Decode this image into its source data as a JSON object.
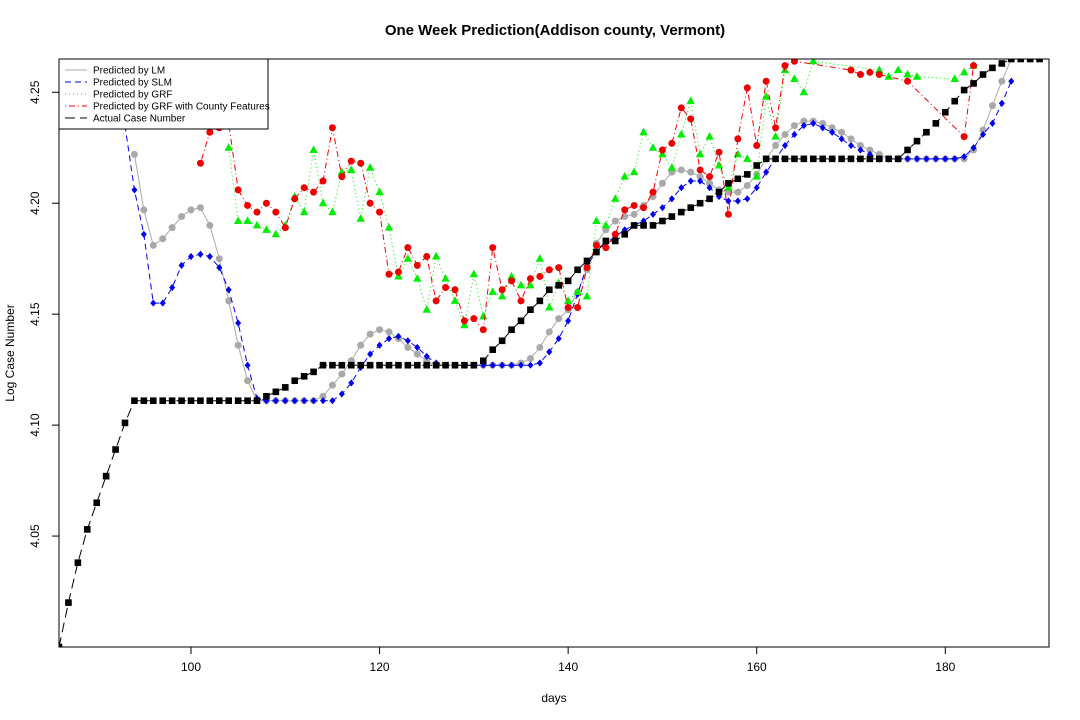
{
  "chart_data": {
    "type": "line",
    "title": "One Week Prediction(Addison county, Vermont)",
    "xlabel": "days",
    "ylabel": "Log Case Number",
    "xlim": [
      86,
      191
    ],
    "ylim": [
      4.0,
      4.265
    ],
    "x_ticks": [
      100,
      120,
      140,
      160,
      180
    ],
    "y_ticks": [
      4.05,
      4.1,
      4.15,
      4.2,
      4.25
    ],
    "x_tick_labels": [
      "100",
      "120",
      "140",
      "160",
      "180"
    ],
    "y_tick_labels": [
      "4.05",
      "4.10",
      "4.15",
      "4.20",
      "4.25"
    ],
    "grid": false,
    "legend_position": "top-left",
    "series": [
      {
        "name": "Predicted by LM",
        "color": "#a9a9a9",
        "line_style": "solid",
        "marker": "circle",
        "x": [
          94,
          95,
          96,
          97,
          98,
          99,
          100,
          101,
          102,
          103,
          104,
          105,
          106,
          107,
          108,
          109,
          110,
          111,
          112,
          113,
          114,
          115,
          116,
          117,
          118,
          119,
          120,
          121,
          122,
          123,
          124,
          125,
          126,
          127,
          128,
          129,
          130,
          131,
          132,
          133,
          134,
          135,
          136,
          137,
          138,
          139,
          140,
          141,
          142,
          143,
          144,
          145,
          146,
          147,
          148,
          149,
          150,
          151,
          152,
          153,
          154,
          155,
          156,
          157,
          158,
          159,
          160,
          161,
          162,
          163,
          164,
          165,
          166,
          167,
          168,
          169,
          170,
          171,
          172,
          173,
          174,
          175,
          176,
          177,
          178,
          179,
          180,
          181,
          182,
          183,
          184,
          185,
          186,
          187
        ],
        "y": [
          4.222,
          4.197,
          4.181,
          4.184,
          4.189,
          4.194,
          4.197,
          4.198,
          4.19,
          4.175,
          4.156,
          4.136,
          4.12,
          4.111,
          4.111,
          4.111,
          4.111,
          4.111,
          4.111,
          4.111,
          4.113,
          4.118,
          4.123,
          4.129,
          4.136,
          4.141,
          4.143,
          4.142,
          4.139,
          4.135,
          4.132,
          4.129,
          4.127,
          4.127,
          4.127,
          4.127,
          4.127,
          4.127,
          4.127,
          4.127,
          4.127,
          4.128,
          4.13,
          4.135,
          4.142,
          4.148,
          4.152,
          4.16,
          4.17,
          4.182,
          4.188,
          4.192,
          4.194,
          4.195,
          4.199,
          4.203,
          4.209,
          4.214,
          4.215,
          4.214,
          4.212,
          4.209,
          4.206,
          4.205,
          4.205,
          4.208,
          4.213,
          4.22,
          4.226,
          4.231,
          4.235,
          4.237,
          4.237,
          4.236,
          4.234,
          4.232,
          4.229,
          4.226,
          4.224,
          4.222,
          4.22,
          4.22,
          4.22,
          4.22,
          4.22,
          4.22,
          4.22,
          4.22,
          4.22,
          4.224,
          4.233,
          4.244,
          4.255,
          4.265
        ]
      },
      {
        "name": "Predicted by SLM",
        "color": "#0000ee",
        "line_style": "dashed",
        "marker": "diamond",
        "x": [
          93,
          94,
          95,
          96,
          97,
          98,
          99,
          100,
          101,
          102,
          103,
          104,
          105,
          106,
          107,
          108,
          109,
          110,
          111,
          112,
          113,
          114,
          115,
          116,
          117,
          118,
          119,
          120,
          121,
          122,
          123,
          124,
          125,
          126,
          127,
          128,
          129,
          130,
          131,
          132,
          133,
          134,
          135,
          136,
          137,
          138,
          139,
          140,
          141,
          142,
          143,
          144,
          145,
          146,
          147,
          148,
          149,
          150,
          151,
          152,
          153,
          154,
          155,
          156,
          157,
          158,
          159,
          160,
          161,
          162,
          163,
          164,
          165,
          166,
          167,
          168,
          169,
          170,
          171,
          172,
          173,
          174,
          175,
          176,
          177,
          178,
          179,
          180,
          181,
          182,
          183,
          184,
          185,
          186,
          187
        ],
        "y": [
          4.235,
          4.206,
          4.186,
          4.155,
          4.155,
          4.162,
          4.172,
          4.176,
          4.177,
          4.176,
          4.171,
          4.161,
          4.146,
          4.127,
          4.112,
          4.111,
          4.111,
          4.111,
          4.111,
          4.111,
          4.111,
          4.111,
          4.111,
          4.114,
          4.119,
          4.126,
          4.132,
          4.136,
          4.139,
          4.14,
          4.138,
          4.135,
          4.131,
          4.128,
          4.127,
          4.127,
          4.127,
          4.127,
          4.127,
          4.127,
          4.127,
          4.127,
          4.127,
          4.127,
          4.128,
          4.133,
          4.139,
          4.147,
          4.159,
          4.172,
          4.178,
          4.182,
          4.185,
          4.188,
          4.19,
          4.192,
          4.195,
          4.198,
          4.202,
          4.207,
          4.21,
          4.21,
          4.207,
          4.203,
          4.201,
          4.201,
          4.202,
          4.207,
          4.214,
          4.22,
          4.226,
          4.231,
          4.235,
          4.236,
          4.234,
          4.232,
          4.229,
          4.226,
          4.224,
          4.222,
          4.22,
          4.22,
          4.22,
          4.22,
          4.22,
          4.22,
          4.22,
          4.22,
          4.22,
          4.221,
          4.225,
          4.231,
          4.236,
          4.245,
          4.255
        ]
      },
      {
        "name": "Predicted by GRF",
        "color": "#00ee00",
        "line_style": "dotted",
        "marker": "triangle",
        "x": [
          104,
          105,
          106,
          107,
          108,
          109,
          110,
          111,
          112,
          113,
          114,
          115,
          116,
          117,
          118,
          119,
          120,
          121,
          122,
          123,
          124,
          125,
          126,
          127,
          128,
          129,
          130,
          131,
          132,
          133,
          134,
          135,
          136,
          137,
          138,
          139,
          140,
          141,
          142,
          143,
          144,
          145,
          146,
          147,
          148,
          149,
          150,
          151,
          152,
          153,
          154,
          155,
          156,
          157,
          158,
          159,
          160,
          161,
          162,
          163,
          164,
          165,
          166,
          173,
          174,
          175,
          176,
          177,
          181,
          182,
          183
        ],
        "y": [
          4.225,
          4.192,
          4.192,
          4.19,
          4.188,
          4.186,
          4.19,
          4.203,
          4.196,
          4.224,
          4.2,
          4.196,
          4.214,
          4.215,
          4.193,
          4.216,
          4.205,
          4.189,
          4.167,
          4.175,
          4.166,
          4.152,
          4.176,
          4.166,
          4.156,
          4.145,
          4.168,
          4.149,
          4.16,
          4.158,
          4.167,
          4.163,
          4.163,
          4.175,
          4.153,
          4.164,
          4.156,
          4.16,
          4.158,
          4.192,
          4.19,
          4.202,
          4.212,
          4.214,
          4.232,
          4.225,
          4.222,
          4.216,
          4.231,
          4.246,
          4.222,
          4.23,
          4.217,
          4.207,
          4.222,
          4.22,
          4.212,
          4.248,
          4.23,
          4.26,
          4.256,
          4.25,
          4.264,
          4.26,
          4.257,
          4.26,
          4.258,
          4.257,
          4.256,
          4.259,
          4.262
        ]
      },
      {
        "name": "Predicted by GRF with County Features",
        "color": "#ee0000",
        "line_style": "dotdash",
        "marker": "circle",
        "x": [
          101,
          102,
          103,
          104,
          105,
          106,
          107,
          108,
          109,
          110,
          111,
          112,
          113,
          114,
          115,
          116,
          117,
          118,
          119,
          120,
          121,
          122,
          123,
          124,
          125,
          126,
          127,
          128,
          129,
          130,
          131,
          132,
          133,
          134,
          135,
          136,
          137,
          138,
          139,
          140,
          141,
          142,
          143,
          144,
          145,
          146,
          147,
          148,
          149,
          150,
          151,
          152,
          153,
          154,
          155,
          156,
          157,
          158,
          159,
          160,
          161,
          162,
          163,
          164,
          170,
          171,
          172,
          173,
          176,
          182,
          183
        ],
        "y": [
          4.218,
          4.232,
          4.234,
          4.236,
          4.206,
          4.199,
          4.196,
          4.2,
          4.196,
          4.189,
          4.202,
          4.207,
          4.205,
          4.21,
          4.234,
          4.212,
          4.219,
          4.218,
          4.2,
          4.196,
          4.168,
          4.169,
          4.18,
          4.172,
          4.176,
          4.156,
          4.162,
          4.161,
          4.147,
          4.148,
          4.143,
          4.18,
          4.161,
          4.165,
          4.156,
          4.166,
          4.167,
          4.17,
          4.171,
          4.153,
          4.153,
          4.171,
          4.181,
          4.18,
          4.186,
          4.197,
          4.199,
          4.198,
          4.205,
          4.224,
          4.227,
          4.243,
          4.238,
          4.215,
          4.212,
          4.223,
          4.195,
          4.229,
          4.252,
          4.226,
          4.255,
          4.234,
          4.262,
          4.264,
          4.26,
          4.258,
          4.259,
          4.258,
          4.255,
          4.23,
          4.262
        ]
      },
      {
        "name": "Actual Case Number",
        "color": "#000000",
        "line_style": "longdash",
        "marker": "square",
        "x": [
          86,
          87,
          88,
          89,
          90,
          91,
          92,
          93,
          94,
          95,
          96,
          97,
          98,
          99,
          100,
          101,
          102,
          103,
          104,
          105,
          106,
          107,
          108,
          109,
          110,
          111,
          112,
          113,
          114,
          115,
          116,
          117,
          118,
          119,
          120,
          121,
          122,
          123,
          124,
          125,
          126,
          127,
          128,
          129,
          130,
          131,
          132,
          133,
          134,
          135,
          136,
          137,
          138,
          139,
          140,
          141,
          142,
          143,
          144,
          145,
          146,
          147,
          148,
          149,
          150,
          151,
          152,
          153,
          154,
          155,
          156,
          157,
          158,
          159,
          160,
          161,
          162,
          163,
          164,
          165,
          166,
          167,
          168,
          169,
          170,
          171,
          172,
          173,
          174,
          175,
          176,
          177,
          178,
          179,
          180,
          181,
          182,
          183,
          184,
          185,
          186,
          187,
          188,
          189,
          190
        ],
        "y": [
          4.0,
          4.02,
          4.038,
          4.053,
          4.065,
          4.077,
          4.089,
          4.101,
          4.111,
          4.111,
          4.111,
          4.111,
          4.111,
          4.111,
          4.111,
          4.111,
          4.111,
          4.111,
          4.111,
          4.111,
          4.111,
          4.111,
          4.113,
          4.115,
          4.117,
          4.12,
          4.122,
          4.124,
          4.127,
          4.127,
          4.127,
          4.127,
          4.127,
          4.127,
          4.127,
          4.127,
          4.127,
          4.127,
          4.127,
          4.127,
          4.127,
          4.127,
          4.127,
          4.127,
          4.127,
          4.129,
          4.134,
          4.138,
          4.143,
          4.147,
          4.152,
          4.156,
          4.161,
          4.163,
          4.165,
          4.17,
          4.174,
          4.178,
          4.183,
          4.183,
          4.186,
          4.19,
          4.19,
          4.19,
          4.192,
          4.194,
          4.196,
          4.198,
          4.2,
          4.202,
          4.205,
          4.209,
          4.211,
          4.213,
          4.217,
          4.22,
          4.22,
          4.22,
          4.22,
          4.22,
          4.22,
          4.22,
          4.22,
          4.22,
          4.22,
          4.22,
          4.22,
          4.22,
          4.22,
          4.22,
          4.224,
          4.228,
          4.232,
          4.236,
          4.241,
          4.246,
          4.251,
          4.254,
          4.258,
          4.261,
          4.263,
          4.265,
          4.265,
          4.265,
          4.265
        ]
      }
    ]
  }
}
